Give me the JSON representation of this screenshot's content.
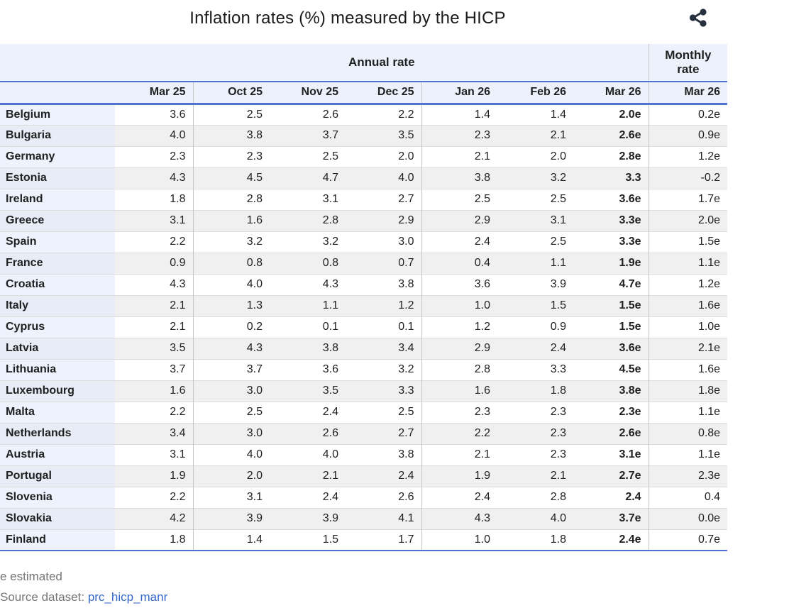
{
  "header": {
    "title": "Inflation rates (%) measured by the HICP",
    "share_icon": "share-icon"
  },
  "table": {
    "group_headers": {
      "annual": "Annual rate",
      "monthly": "Monthly\nrate"
    },
    "annual_columns": [
      "Mar 25",
      "Oct 25",
      "Nov 25",
      "Dec 25",
      "Jan 26",
      "Feb 26",
      "Mar 26"
    ],
    "monthly_column": "Mar 26",
    "rows": [
      {
        "country": "Belgium",
        "annual": [
          "3.6",
          "2.5",
          "2.6",
          "2.2",
          "1.4",
          "1.4",
          "2.0e"
        ],
        "monthly": "0.2e"
      },
      {
        "country": "Bulgaria",
        "annual": [
          "4.0",
          "3.8",
          "3.7",
          "3.5",
          "2.3",
          "2.1",
          "2.6e"
        ],
        "monthly": "0.9e"
      },
      {
        "country": "Germany",
        "annual": [
          "2.3",
          "2.3",
          "2.5",
          "2.0",
          "2.1",
          "2.0",
          "2.8e"
        ],
        "monthly": "1.2e"
      },
      {
        "country": "Estonia",
        "annual": [
          "4.3",
          "4.5",
          "4.7",
          "4.0",
          "3.8",
          "3.2",
          "3.3"
        ],
        "monthly": "-0.2"
      },
      {
        "country": "Ireland",
        "annual": [
          "1.8",
          "2.8",
          "3.1",
          "2.7",
          "2.5",
          "2.5",
          "3.6e"
        ],
        "monthly": "1.7e"
      },
      {
        "country": "Greece",
        "annual": [
          "3.1",
          "1.6",
          "2.8",
          "2.9",
          "2.9",
          "3.1",
          "3.3e"
        ],
        "monthly": "2.0e"
      },
      {
        "country": "Spain",
        "annual": [
          "2.2",
          "3.2",
          "3.2",
          "3.0",
          "2.4",
          "2.5",
          "3.3e"
        ],
        "monthly": "1.5e"
      },
      {
        "country": "France",
        "annual": [
          "0.9",
          "0.8",
          "0.8",
          "0.7",
          "0.4",
          "1.1",
          "1.9e"
        ],
        "monthly": "1.1e"
      },
      {
        "country": "Croatia",
        "annual": [
          "4.3",
          "4.0",
          "4.3",
          "3.8",
          "3.6",
          "3.9",
          "4.7e"
        ],
        "monthly": "1.2e"
      },
      {
        "country": "Italy",
        "annual": [
          "2.1",
          "1.3",
          "1.1",
          "1.2",
          "1.0",
          "1.5",
          "1.5e"
        ],
        "monthly": "1.6e"
      },
      {
        "country": "Cyprus",
        "annual": [
          "2.1",
          "0.2",
          "0.1",
          "0.1",
          "1.2",
          "0.9",
          "1.5e"
        ],
        "monthly": "1.0e"
      },
      {
        "country": "Latvia",
        "annual": [
          "3.5",
          "4.3",
          "3.8",
          "3.4",
          "2.9",
          "2.4",
          "3.6e"
        ],
        "monthly": "2.1e"
      },
      {
        "country": "Lithuania",
        "annual": [
          "3.7",
          "3.7",
          "3.6",
          "3.2",
          "2.8",
          "3.3",
          "4.5e"
        ],
        "monthly": "1.6e"
      },
      {
        "country": "Luxembourg",
        "annual": [
          "1.6",
          "3.0",
          "3.5",
          "3.3",
          "1.6",
          "1.8",
          "3.8e"
        ],
        "monthly": "1.8e"
      },
      {
        "country": "Malta",
        "annual": [
          "2.2",
          "2.5",
          "2.4",
          "2.5",
          "2.3",
          "2.3",
          "2.3e"
        ],
        "monthly": "1.1e"
      },
      {
        "country": "Netherlands",
        "annual": [
          "3.4",
          "3.0",
          "2.6",
          "2.7",
          "2.2",
          "2.3",
          "2.6e"
        ],
        "monthly": "0.8e"
      },
      {
        "country": "Austria",
        "annual": [
          "3.1",
          "4.0",
          "4.0",
          "3.8",
          "2.1",
          "2.3",
          "3.1e"
        ],
        "monthly": "1.1e"
      },
      {
        "country": "Portugal",
        "annual": [
          "1.9",
          "2.0",
          "2.1",
          "2.4",
          "1.9",
          "2.1",
          "2.7e"
        ],
        "monthly": "2.3e"
      },
      {
        "country": "Slovenia",
        "annual": [
          "2.2",
          "3.1",
          "2.4",
          "2.6",
          "2.4",
          "2.8",
          "2.4"
        ],
        "monthly": "0.4"
      },
      {
        "country": "Slovakia",
        "annual": [
          "4.2",
          "3.9",
          "3.9",
          "4.1",
          "4.3",
          "4.0",
          "3.7e"
        ],
        "monthly": "0.0e"
      },
      {
        "country": "Finland",
        "annual": [
          "1.8",
          "1.4",
          "1.5",
          "1.7",
          "1.0",
          "1.8",
          "2.4e"
        ],
        "monthly": "0.7e"
      }
    ]
  },
  "footer": {
    "estimated_note": "e estimated",
    "source_prefix": "Source dataset: ",
    "source_link": "prc_hicp_manr"
  },
  "colors": {
    "accent_line": "#5272d2",
    "header_bg": "#ecf1fb",
    "row_alt_bg": "#f0f0f0",
    "country_bg": "#eef2fc",
    "country_alt_bg": "#e8ecf6",
    "link": "#3366cc",
    "muted_text": "#757575",
    "text": "#202122",
    "border": "#c6c6c6",
    "row_border": "#dcdcdc",
    "icon": "#27303f"
  },
  "chart_data": {
    "type": "table",
    "title": "Inflation rates (%) measured by the HICP",
    "column_groups": [
      "Annual rate",
      "Monthly rate"
    ],
    "categories": [
      "Mar 25",
      "Oct 25",
      "Nov 25",
      "Dec 25",
      "Jan 26",
      "Feb 26",
      "Mar 26",
      "Mar 26 (monthly)"
    ],
    "series": [
      {
        "name": "Belgium",
        "values": [
          3.6,
          2.5,
          2.6,
          2.2,
          1.4,
          1.4,
          2.0,
          0.2
        ]
      },
      {
        "name": "Bulgaria",
        "values": [
          4.0,
          3.8,
          3.7,
          3.5,
          2.3,
          2.1,
          2.6,
          0.9
        ]
      },
      {
        "name": "Germany",
        "values": [
          2.3,
          2.3,
          2.5,
          2.0,
          2.1,
          2.0,
          2.8,
          1.2
        ]
      },
      {
        "name": "Estonia",
        "values": [
          4.3,
          4.5,
          4.7,
          4.0,
          3.8,
          3.2,
          3.3,
          -0.2
        ]
      },
      {
        "name": "Ireland",
        "values": [
          1.8,
          2.8,
          3.1,
          2.7,
          2.5,
          2.5,
          3.6,
          1.7
        ]
      },
      {
        "name": "Greece",
        "values": [
          3.1,
          1.6,
          2.8,
          2.9,
          2.9,
          3.1,
          3.3,
          2.0
        ]
      },
      {
        "name": "Spain",
        "values": [
          2.2,
          3.2,
          3.2,
          3.0,
          2.4,
          2.5,
          3.3,
          1.5
        ]
      },
      {
        "name": "France",
        "values": [
          0.9,
          0.8,
          0.8,
          0.7,
          0.4,
          1.1,
          1.9,
          1.1
        ]
      },
      {
        "name": "Croatia",
        "values": [
          4.3,
          4.0,
          4.3,
          3.8,
          3.6,
          3.9,
          4.7,
          1.2
        ]
      },
      {
        "name": "Italy",
        "values": [
          2.1,
          1.3,
          1.1,
          1.2,
          1.0,
          1.5,
          1.5,
          1.6
        ]
      },
      {
        "name": "Cyprus",
        "values": [
          2.1,
          0.2,
          0.1,
          0.1,
          1.2,
          0.9,
          1.5,
          1.0
        ]
      },
      {
        "name": "Latvia",
        "values": [
          3.5,
          4.3,
          3.8,
          3.4,
          2.9,
          2.4,
          3.6,
          2.1
        ]
      },
      {
        "name": "Lithuania",
        "values": [
          3.7,
          3.7,
          3.6,
          3.2,
          2.8,
          3.3,
          4.5,
          1.6
        ]
      },
      {
        "name": "Luxembourg",
        "values": [
          1.6,
          3.0,
          3.5,
          3.3,
          1.6,
          1.8,
          3.8,
          1.8
        ]
      },
      {
        "name": "Malta",
        "values": [
          2.2,
          2.5,
          2.4,
          2.5,
          2.3,
          2.3,
          2.3,
          1.1
        ]
      },
      {
        "name": "Netherlands",
        "values": [
          3.4,
          3.0,
          2.6,
          2.7,
          2.2,
          2.3,
          2.6,
          0.8
        ]
      },
      {
        "name": "Austria",
        "values": [
          3.1,
          4.0,
          4.0,
          3.8,
          2.1,
          2.3,
          3.1,
          1.1
        ]
      },
      {
        "name": "Portugal",
        "values": [
          1.9,
          2.0,
          2.1,
          2.4,
          1.9,
          2.1,
          2.7,
          2.3
        ]
      },
      {
        "name": "Slovenia",
        "values": [
          2.2,
          3.1,
          2.4,
          2.6,
          2.4,
          2.8,
          2.4,
          0.4
        ]
      },
      {
        "name": "Slovakia",
        "values": [
          4.2,
          3.9,
          3.9,
          4.1,
          4.3,
          4.0,
          3.7,
          0.0
        ]
      },
      {
        "name": "Finland",
        "values": [
          1.8,
          1.4,
          1.5,
          1.7,
          1.0,
          1.8,
          2.4,
          0.7
        ]
      }
    ],
    "annotations": [
      "e estimated",
      "last annual column (Mar 26) shown in bold"
    ],
    "legend_position": "none",
    "grid": "row-and-group-separators"
  }
}
